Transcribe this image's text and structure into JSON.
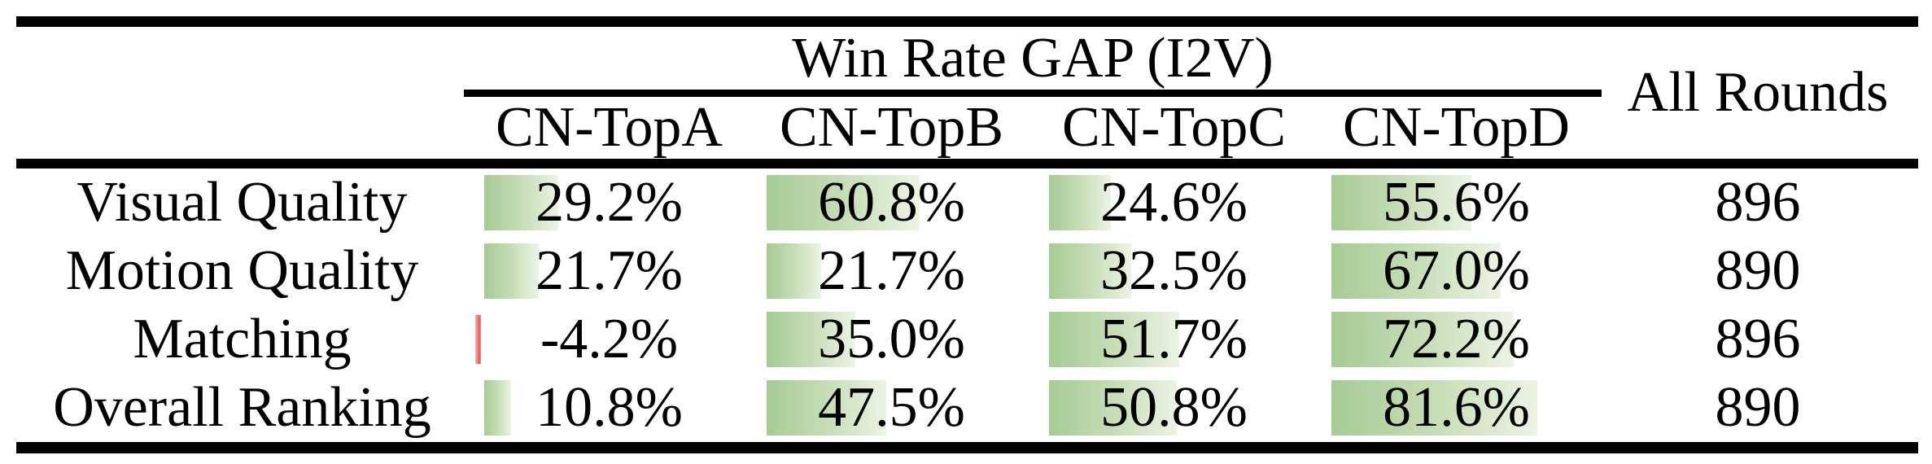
{
  "table": {
    "header": {
      "group_title": "Win Rate GAP (I2V)",
      "all_rounds_label": "All Rounds",
      "columns": [
        "CN-TopA",
        "CN-TopB",
        "CN-TopC",
        "CN-TopD"
      ]
    },
    "rows": [
      {
        "label": "Visual Quality",
        "values": [
          "29.2%",
          "60.8%",
          "24.6%",
          "55.6%"
        ],
        "numeric": [
          29.2,
          60.8,
          24.6,
          55.6
        ],
        "all_rounds": "896"
      },
      {
        "label": "Motion Quality",
        "values": [
          "21.7%",
          "21.7%",
          "32.5%",
          "67.0%"
        ],
        "numeric": [
          21.7,
          21.7,
          32.5,
          67.0
        ],
        "all_rounds": "890"
      },
      {
        "label": "Matching",
        "values": [
          "-4.2%",
          "35.0%",
          "51.7%",
          "72.2%"
        ],
        "numeric": [
          -4.2,
          35.0,
          51.7,
          72.2
        ],
        "all_rounds": "896"
      },
      {
        "label": "Overall Ranking",
        "values": [
          "10.8%",
          "47.5%",
          "50.8%",
          "81.6%"
        ],
        "numeric": [
          10.8,
          47.5,
          50.8,
          81.6
        ],
        "all_rounds": "890"
      }
    ],
    "colors": {
      "bar_positive": "#a6cb94",
      "bar_negative": "#ee5a5a",
      "rule": "#000000"
    }
  },
  "chart_data": {
    "type": "table",
    "title": "Win Rate GAP (I2V)",
    "categories": [
      "Visual Quality",
      "Motion Quality",
      "Matching",
      "Overall Ranking"
    ],
    "series": [
      {
        "name": "CN-TopA",
        "values": [
          29.2,
          21.7,
          -4.2,
          10.8
        ]
      },
      {
        "name": "CN-TopB",
        "values": [
          60.8,
          21.7,
          35.0,
          47.5
        ]
      },
      {
        "name": "CN-TopC",
        "values": [
          24.6,
          32.5,
          51.7,
          50.8
        ]
      },
      {
        "name": "CN-TopD",
        "values": [
          55.6,
          67.0,
          72.2,
          81.6
        ]
      },
      {
        "name": "All Rounds",
        "values": [
          896,
          890,
          896,
          890
        ]
      }
    ],
    "value_unit": "%",
    "notes": "in-cell gradient data bars; negative value shown as thin red bar"
  }
}
